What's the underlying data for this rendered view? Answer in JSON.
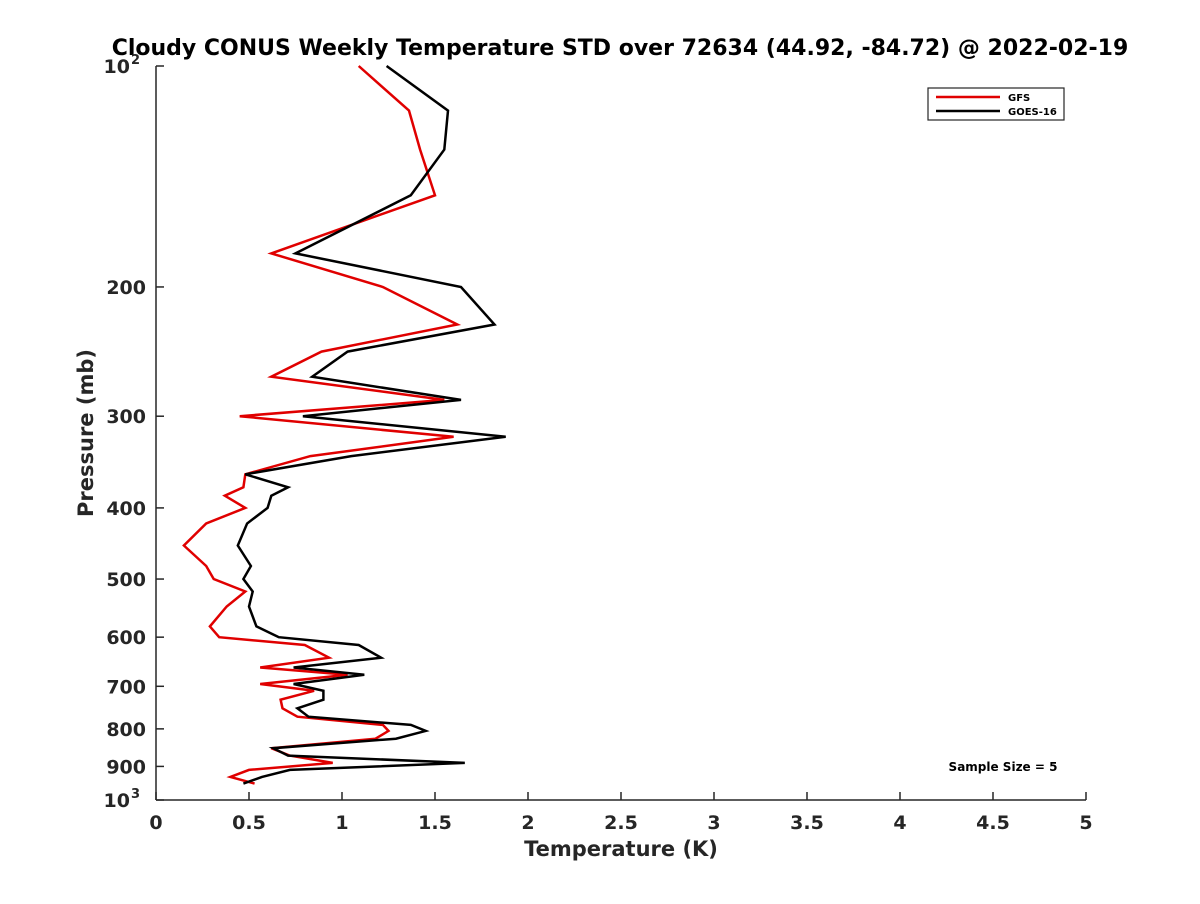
{
  "chart_data": {
    "type": "line",
    "title": "Cloudy CONUS Weekly Temperature STD over 72634 (44.92, -84.72) @ 2022-02-19",
    "xlabel": "Temperature (K)",
    "ylabel": "Pressure (mb)",
    "xlim": [
      0,
      5
    ],
    "ylim": [
      100,
      1000
    ],
    "yscale": "log",
    "y_reversed": true,
    "grid": false,
    "legend_position": "top-right",
    "x_ticks": [
      0,
      0.5,
      1,
      1.5,
      2,
      2.5,
      3,
      3.5,
      4,
      4.5,
      5
    ],
    "x_tick_labels": [
      "0",
      "0.5",
      "1",
      "1.5",
      "2",
      "2.5",
      "3",
      "3.5",
      "4",
      "4.5",
      "5"
    ],
    "y_ticks": [
      200,
      300,
      400,
      500,
      600,
      700,
      800,
      900
    ],
    "y_tick_labels": [
      "200",
      "300",
      "400",
      "500",
      "600",
      "700",
      "800",
      "900"
    ],
    "y_end_labels": [
      {
        "value": 100,
        "base": "10",
        "exp": "2"
      },
      {
        "value": 1000,
        "base": "10",
        "exp": "3"
      }
    ],
    "annotation": "Sample Size = 5",
    "series": [
      {
        "name": "GFS",
        "color": "#e00000",
        "points": [
          [
            1.09,
            100
          ],
          [
            1.36,
            115
          ],
          [
            1.42,
            130
          ],
          [
            1.5,
            150
          ],
          [
            0.62,
            180
          ],
          [
            1.22,
            200
          ],
          [
            1.62,
            225
          ],
          [
            0.89,
            245
          ],
          [
            0.62,
            265
          ],
          [
            1.55,
            285
          ],
          [
            0.45,
            300
          ],
          [
            1.6,
            320
          ],
          [
            0.83,
            340
          ],
          [
            0.48,
            360
          ],
          [
            0.47,
            375
          ],
          [
            0.37,
            385
          ],
          [
            0.48,
            400
          ],
          [
            0.27,
            420
          ],
          [
            0.15,
            450
          ],
          [
            0.27,
            480
          ],
          [
            0.31,
            500
          ],
          [
            0.48,
            520
          ],
          [
            0.38,
            545
          ],
          [
            0.29,
            580
          ],
          [
            0.34,
            600
          ],
          [
            0.8,
            615
          ],
          [
            0.93,
            640
          ],
          [
            0.56,
            660
          ],
          [
            1.03,
            675
          ],
          [
            0.56,
            695
          ],
          [
            0.85,
            710
          ],
          [
            0.67,
            730
          ],
          [
            0.68,
            750
          ],
          [
            0.76,
            770
          ],
          [
            1.22,
            790
          ],
          [
            1.25,
            805
          ],
          [
            1.18,
            825
          ],
          [
            0.62,
            850
          ],
          [
            0.72,
            870
          ],
          [
            0.95,
            890
          ],
          [
            0.5,
            910
          ],
          [
            0.4,
            930
          ],
          [
            0.53,
            950
          ]
        ]
      },
      {
        "name": "GOES-16",
        "color": "#000000",
        "points": [
          [
            1.24,
            100
          ],
          [
            1.57,
            115
          ],
          [
            1.55,
            130
          ],
          [
            1.37,
            150
          ],
          [
            0.75,
            180
          ],
          [
            1.64,
            200
          ],
          [
            1.82,
            225
          ],
          [
            1.03,
            245
          ],
          [
            0.84,
            265
          ],
          [
            1.64,
            285
          ],
          [
            0.79,
            300
          ],
          [
            1.88,
            320
          ],
          [
            1.05,
            340
          ],
          [
            0.48,
            360
          ],
          [
            0.71,
            375
          ],
          [
            0.62,
            385
          ],
          [
            0.6,
            400
          ],
          [
            0.49,
            420
          ],
          [
            0.44,
            450
          ],
          [
            0.51,
            480
          ],
          [
            0.47,
            500
          ],
          [
            0.52,
            520
          ],
          [
            0.5,
            545
          ],
          [
            0.54,
            580
          ],
          [
            0.66,
            600
          ],
          [
            1.09,
            615
          ],
          [
            1.21,
            640
          ],
          [
            0.74,
            660
          ],
          [
            1.12,
            675
          ],
          [
            0.74,
            695
          ],
          [
            0.9,
            710
          ],
          [
            0.9,
            730
          ],
          [
            0.76,
            750
          ],
          [
            0.82,
            770
          ],
          [
            1.37,
            790
          ],
          [
            1.45,
            805
          ],
          [
            1.29,
            825
          ],
          [
            0.63,
            850
          ],
          [
            0.71,
            870
          ],
          [
            1.66,
            890
          ],
          [
            0.72,
            910
          ],
          [
            0.57,
            930
          ],
          [
            0.47,
            950
          ]
        ]
      }
    ]
  }
}
